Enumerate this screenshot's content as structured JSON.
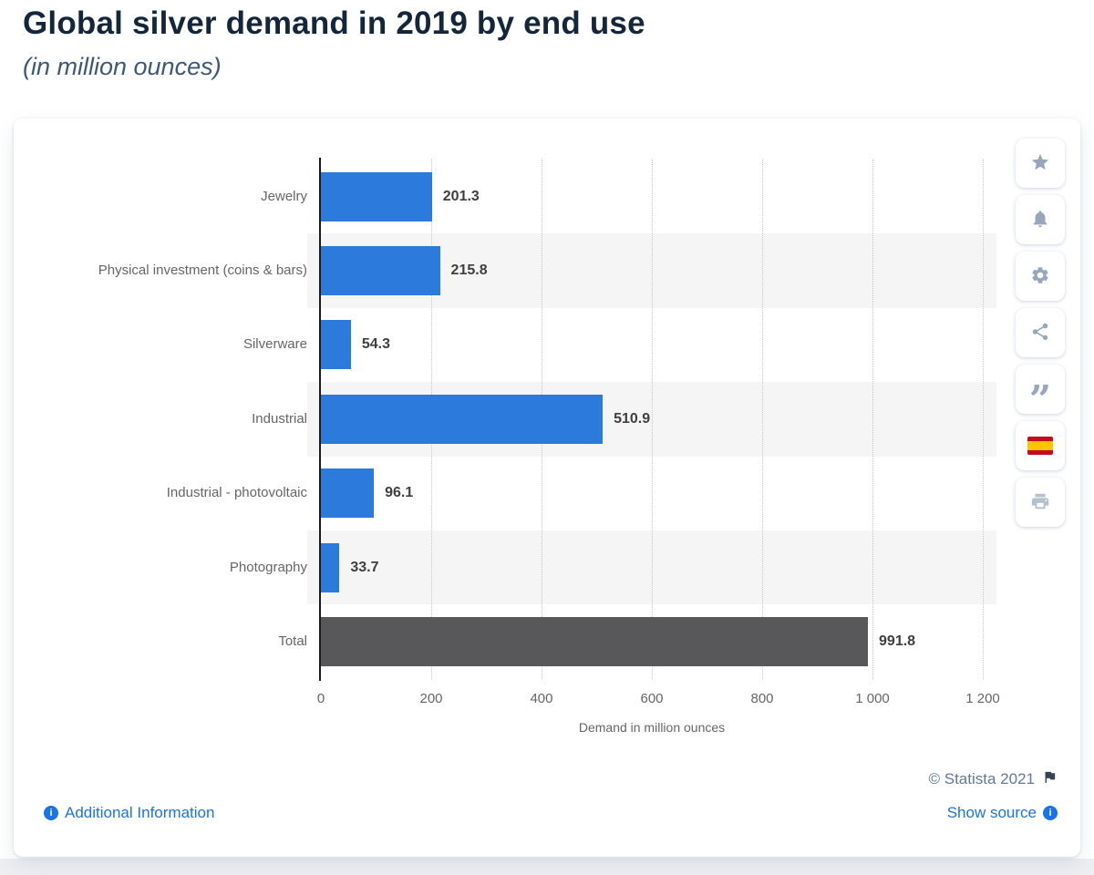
{
  "header": {
    "title": "Global silver demand in 2019 by end use",
    "subtitle": "(in million ounces)"
  },
  "chart_data": {
    "type": "bar",
    "orientation": "horizontal",
    "title": "Global silver demand in 2019 by end use",
    "subtitle": "(in million ounces)",
    "categories": [
      "Jewelry",
      "Physical investment (coins & bars)",
      "Silverware",
      "Industrial",
      "Industrial - photovoltaic",
      "Photography",
      "Total"
    ],
    "values": [
      201.3,
      215.8,
      54.3,
      510.9,
      96.1,
      33.7,
      991.8
    ],
    "value_labels": [
      "201.3",
      "215.8",
      "54.3",
      "510.9",
      "96.1",
      "33.7",
      "991.8"
    ],
    "xlabel": "Demand in million ounces",
    "xticks": [
      "0",
      "200",
      "400",
      "600",
      "800",
      "1 000",
      "1 200"
    ],
    "xlim": [
      0,
      1200
    ],
    "grid": "vertical-dotted",
    "legend": "none",
    "bar_color": "#2C7BDC",
    "total_bar_color": "#58585A",
    "row_band_color": "#F5F5F5"
  },
  "toolbar": {
    "buttons": [
      {
        "name": "favorite",
        "icon": "star-icon"
      },
      {
        "name": "alert",
        "icon": "bell-icon"
      },
      {
        "name": "settings",
        "icon": "gear-icon"
      },
      {
        "name": "share",
        "icon": "share-icon"
      },
      {
        "name": "cite",
        "icon": "quote-icon",
        "glyph": "”"
      },
      {
        "name": "language-spanish",
        "icon": "spain-flag-icon"
      },
      {
        "name": "print",
        "icon": "printer-icon"
      }
    ]
  },
  "footer": {
    "copyright": "© Statista 2021",
    "additional_information": "Additional Information",
    "show_source": "Show source",
    "link_color": "#1A73E8",
    "copyright_color": "#617A96"
  }
}
